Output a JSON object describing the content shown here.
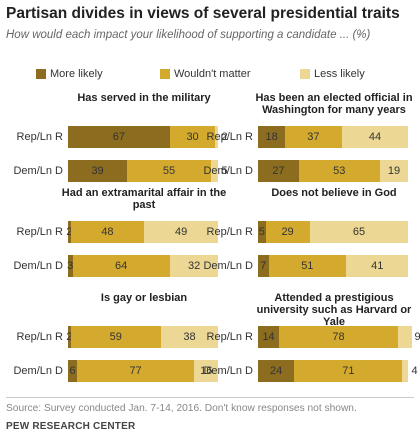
{
  "title": "Partisan divides in views of several presidential traits",
  "subtitle": "How would each impact your likelihood of supporting a candidate ... (%)",
  "colors": {
    "more_likely": "#8c6d1f",
    "wouldnt_matter": "#d4aa2e",
    "less_likely": "#ecd894"
  },
  "source": "Source: Survey conducted Jan. 7-14, 2016. Don't know responses not shown.",
  "org": "PEW RESEARCH CENTER",
  "chart_data": {
    "type": "bar",
    "stacked": true,
    "orientation": "horizontal",
    "legend": [
      "More likely",
      "Wouldn't matter",
      "Less likely"
    ],
    "legend_placement": "top",
    "grid": false,
    "panels": [
      {
        "title": "Has served in the military",
        "rows": [
          {
            "label": "Rep/Ln R",
            "values": [
              67,
              30,
              2
            ]
          },
          {
            "label": "Dem/Ln D",
            "values": [
              39,
              55,
              5
            ]
          }
        ]
      },
      {
        "title": "Has been an elected official in Washington for many years",
        "rows": [
          {
            "label": "Rep/Ln R",
            "values": [
              18,
              37,
              44
            ]
          },
          {
            "label": "Dem/Ln D",
            "values": [
              27,
              53,
              19
            ]
          }
        ]
      },
      {
        "title": "Had an extramarital affair in the past",
        "rows": [
          {
            "label": "Rep/Ln R",
            "values": [
              2,
              48,
              49
            ]
          },
          {
            "label": "Dem/Ln D",
            "values": [
              3,
              64,
              32
            ]
          }
        ]
      },
      {
        "title": "Does not believe in God",
        "rows": [
          {
            "label": "Rep/Ln R",
            "values": [
              5,
              29,
              65
            ]
          },
          {
            "label": "Dem/Ln D",
            "values": [
              7,
              51,
              41
            ]
          }
        ]
      },
      {
        "title": "Is gay or lesbian",
        "rows": [
          {
            "label": "Rep/Ln R",
            "values": [
              2,
              59,
              38
            ]
          },
          {
            "label": "Dem/Ln D",
            "values": [
              6,
              77,
              16
            ]
          }
        ]
      },
      {
        "title": "Attended a prestigious university such as Harvard or Yale",
        "rows": [
          {
            "label": "Rep/Ln R",
            "values": [
              14,
              78,
              9
            ]
          },
          {
            "label": "Dem/Ln D",
            "values": [
              24,
              71,
              4
            ]
          }
        ]
      }
    ]
  }
}
